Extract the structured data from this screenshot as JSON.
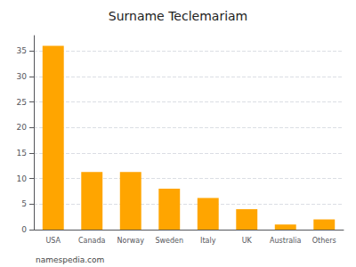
{
  "chart_data": {
    "type": "bar",
    "title": "Surname Teclemariam",
    "categories": [
      "USA",
      "Canada",
      "Norway",
      "Sweden",
      "Italy",
      "UK",
      "Australia",
      "Others"
    ],
    "values": [
      36,
      11.3,
      11.3,
      8,
      6.2,
      4,
      1,
      2
    ],
    "color": "#FFA500",
    "ylim": [
      0,
      38
    ],
    "yticks": [
      0,
      5,
      10,
      15,
      20,
      25,
      30,
      35
    ],
    "grid": true,
    "annotations": [
      "namespedia.com"
    ]
  }
}
